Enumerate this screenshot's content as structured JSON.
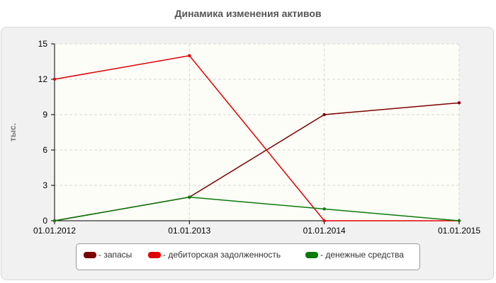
{
  "chart_data": {
    "type": "line",
    "title": "Динамика изменения активов",
    "ylabel": "тыс.",
    "xlabel": "",
    "x": [
      "01.01.2012",
      "01.01.2013",
      "01.01.2014",
      "01.01.2015"
    ],
    "ylim": [
      0,
      15
    ],
    "yticks": [
      0,
      3,
      6,
      9,
      12,
      15
    ],
    "grid": true,
    "legend_position": "bottom",
    "series": [
      {
        "name": "- запасы",
        "color": "#7a0000",
        "values": [
          0,
          2,
          9,
          10
        ]
      },
      {
        "name": "- дебиторская задолженность",
        "color": "#e00000",
        "values": [
          12,
          14,
          0,
          0
        ]
      },
      {
        "name": "- денежные средства",
        "color": "#0a7a0a",
        "values": [
          0,
          2,
          1,
          0
        ]
      }
    ]
  }
}
